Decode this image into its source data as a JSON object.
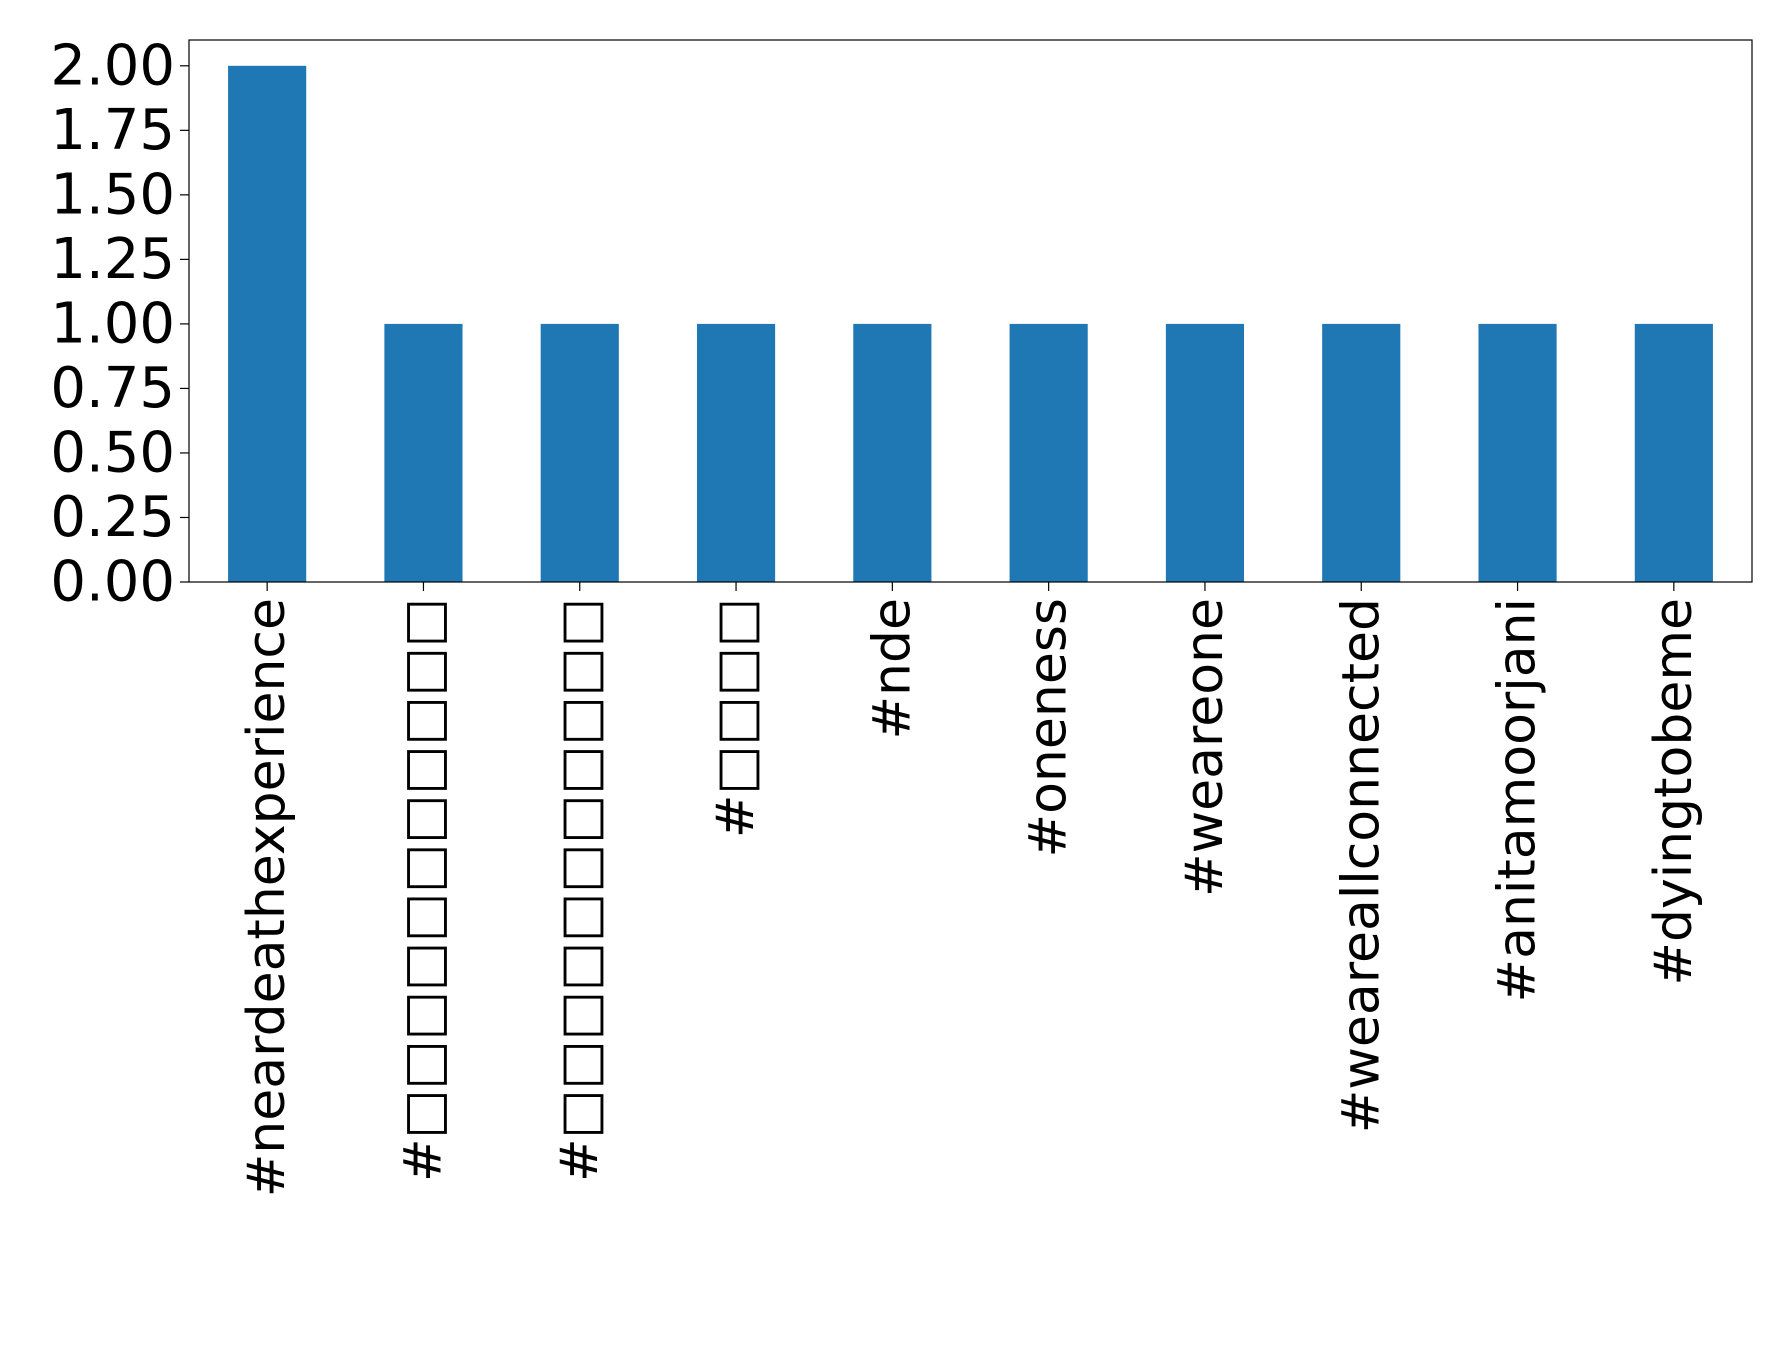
{
  "chart_data": {
    "type": "bar",
    "categories": [
      "#neardeathexperience",
      "#□□□□□□□□□□□",
      "#□□□□□□□□□□□",
      "#□□□□",
      "#nde",
      "#oneness",
      "#weareone",
      "#weareallconnected",
      "#anitamoorjani",
      "#dyingtobeme"
    ],
    "values": [
      2,
      1,
      1,
      1,
      1,
      1,
      1,
      1,
      1,
      1
    ],
    "ylim": [
      0,
      2.1
    ],
    "yticks": [
      "0.00",
      "0.25",
      "0.50",
      "0.75",
      "1.00",
      "1.25",
      "1.50",
      "1.75",
      "2.00"
    ],
    "ytick_values": [
      0,
      0.25,
      0.5,
      0.75,
      1.0,
      1.25,
      1.5,
      1.75,
      2.0
    ],
    "bar_color": "#1f77b4",
    "grid": false,
    "legend": "none"
  }
}
